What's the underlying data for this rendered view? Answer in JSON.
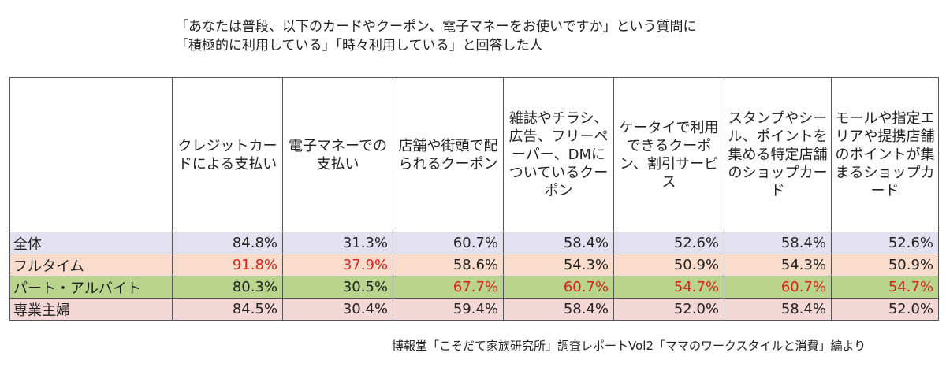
{
  "chart_data": {
    "type": "table",
    "title_lines": [
      "「あなたは普段、以下のカードやクーポン、電子マネーをお使いですか」という質問に",
      "「積極的に利用している」「時々利用している」と回答した人"
    ],
    "columns": [
      "クレジットカードによる支払い",
      "電子マネーでの支払い",
      "店舗や街頭で配られるクーポン",
      "雑誌やチラシ、広告、フリーペーパー、DMについているクーポン",
      "ケータイで利用できるクーポン、割引サービス",
      "スタンプやシール、ポイントを集める特定店舗のショップカード",
      "モールや指定エリアや提携店舗のポイントが集まるショップカード"
    ],
    "rows": [
      {
        "label": "全体",
        "color": "#e3e0f0",
        "values": [
          "84.8%",
          "31.3%",
          "60.7%",
          "58.4%",
          "52.6%",
          "58.4%",
          "52.6%"
        ],
        "highlight": [
          false,
          false,
          false,
          false,
          false,
          false,
          false
        ]
      },
      {
        "label": "フルタイム",
        "color": "#f9dccc",
        "values": [
          "91.8%",
          "37.9%",
          "58.6%",
          "54.3%",
          "50.9%",
          "54.3%",
          "50.9%"
        ],
        "highlight": [
          true,
          true,
          false,
          false,
          false,
          false,
          false
        ]
      },
      {
        "label": "パート・アルバイト",
        "color": "#b9d48c",
        "values": [
          "80.3%",
          "30.5%",
          "67.7%",
          "60.7%",
          "54.7%",
          "60.7%",
          "54.7%"
        ],
        "highlight": [
          false,
          false,
          true,
          true,
          true,
          true,
          true
        ]
      },
      {
        "label": "専業主婦",
        "color": "#f3d6d6",
        "values": [
          "84.5%",
          "30.4%",
          "59.4%",
          "58.4%",
          "52.0%",
          "58.4%",
          "52.0%"
        ],
        "highlight": [
          false,
          false,
          false,
          false,
          false,
          false,
          false
        ]
      }
    ],
    "highlight_color": "#d9231b",
    "source": "博報堂「こそだて家族研究所」調査レポートVol2「ママのワークスタイルと消費」編より"
  }
}
